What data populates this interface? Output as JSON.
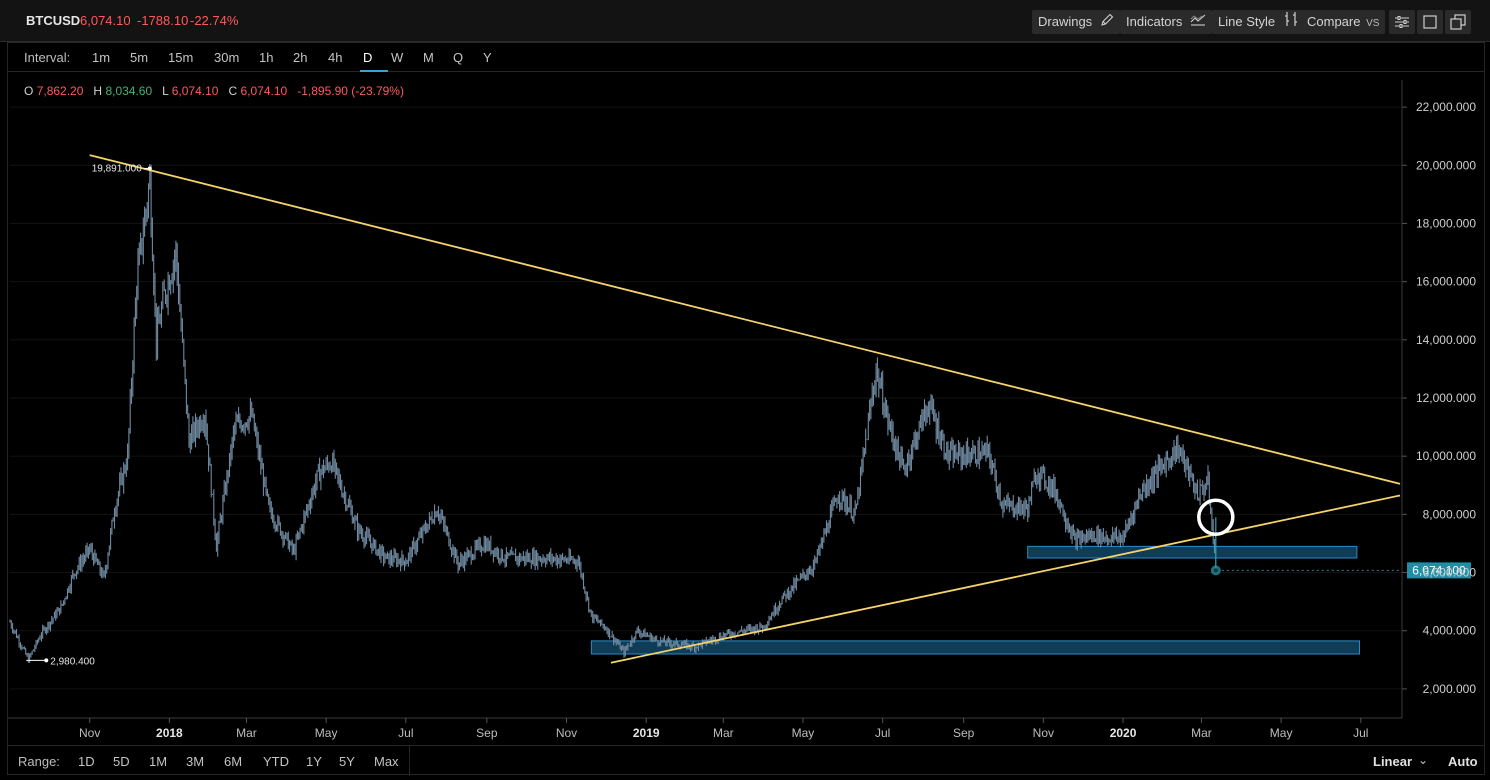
{
  "header": {
    "symbol": "BTCUSD",
    "price": "6,074.10",
    "change": "-1788.10",
    "change_pct": "-22.74%",
    "buttons": {
      "drawings": "Drawings",
      "indicators": "Indicators",
      "line_style": "Line Style",
      "compare": "Compare",
      "compare_suffix": "VS"
    },
    "icons": [
      "pencil-icon",
      "indicators-icon",
      "line-style-icon",
      "settings-sliders-icon",
      "fullscreen-icon",
      "popout-icon"
    ]
  },
  "interval": {
    "label": "Interval:",
    "options": [
      "1m",
      "5m",
      "15m",
      "30m",
      "1h",
      "2h",
      "4h",
      "D",
      "W",
      "M",
      "Q",
      "Y"
    ],
    "selected": "D"
  },
  "ohlc": {
    "o_label": "O",
    "o": "7,862.20",
    "h_label": "H",
    "h": "8,034.60",
    "l_label": "L",
    "l": "6,074.10",
    "c_label": "C",
    "c": "6,074.10",
    "change": "-1,895.90 (-23.79%)"
  },
  "range": {
    "label": "Range:",
    "options": [
      "1D",
      "5D",
      "1M",
      "3M",
      "6M",
      "YTD",
      "1Y",
      "5Y",
      "Max"
    ],
    "scale_mode": "Linear",
    "auto": "Auto"
  },
  "colors": {
    "background": "#000000",
    "price_series": "#6f8aa0",
    "trendline": "#f5d36b",
    "zone": "#1b6e9e",
    "zone_border": "#2f8ac2",
    "current_price_badge": "#1f8fa5",
    "negative": "#ff5a5a",
    "positive": "#4caf7a",
    "selected_underline": "#3aa3d6"
  },
  "chart_data": {
    "type": "ohlc",
    "y_ticks": [
      "2,000.000",
      "4,000.000",
      "6,000.000",
      "8,000.000",
      "10,000.000",
      "12,000.000",
      "14,000.000",
      "16,000.000",
      "18,000.000",
      "20,000.000",
      "22,000.000"
    ],
    "y_tick_values": [
      2000,
      4000,
      6000,
      8000,
      10000,
      12000,
      14000,
      16000,
      18000,
      20000,
      22000
    ],
    "ylim": [
      1000,
      23000
    ],
    "x_ticks": [
      "Nov",
      "2018",
      "Mar",
      "May",
      "Jul",
      "Sep",
      "Nov",
      "2019",
      "Mar",
      "May",
      "Jul",
      "Sep",
      "Nov",
      "2020",
      "Mar",
      "May",
      "Jul"
    ],
    "x_tick_dates": [
      "2017-11-01",
      "2018-01-01",
      "2018-03-01",
      "2018-05-01",
      "2018-07-01",
      "2018-09-01",
      "2018-11-01",
      "2019-01-01",
      "2019-03-01",
      "2019-05-01",
      "2019-07-01",
      "2019-09-01",
      "2019-11-01",
      "2020-01-01",
      "2020-03-01",
      "2020-05-01",
      "2020-07-01"
    ],
    "bold_x_ticks": [
      "2018",
      "2019",
      "2020"
    ],
    "xlim": [
      "2017-09-01",
      "2020-07-31"
    ],
    "series": [
      {
        "name": "BTCUSD",
        "points": [
          [
            "2017-09-01",
            4300
          ],
          [
            "2017-09-15",
            3000
          ],
          [
            "2017-09-25",
            3900
          ],
          [
            "2017-10-10",
            4800
          ],
          [
            "2017-10-20",
            6000
          ],
          [
            "2017-11-01",
            6800
          ],
          [
            "2017-11-12",
            5800
          ],
          [
            "2017-11-20",
            8200
          ],
          [
            "2017-11-30",
            10000
          ],
          [
            "2017-12-07",
            16000
          ],
          [
            "2017-12-17",
            19500
          ],
          [
            "2017-12-22",
            14000
          ],
          [
            "2017-12-28",
            15500
          ],
          [
            "2018-01-06",
            17000
          ],
          [
            "2018-01-16",
            10500
          ],
          [
            "2018-01-28",
            11500
          ],
          [
            "2018-02-06",
            6900
          ],
          [
            "2018-02-20",
            11000
          ],
          [
            "2018-03-05",
            11400
          ],
          [
            "2018-03-18",
            8200
          ],
          [
            "2018-04-06",
            6700
          ],
          [
            "2018-04-25",
            9400
          ],
          [
            "2018-05-05",
            9800
          ],
          [
            "2018-05-25",
            7500
          ],
          [
            "2018-06-15",
            6500
          ],
          [
            "2018-07-01",
            6400
          ],
          [
            "2018-07-25",
            8200
          ],
          [
            "2018-08-10",
            6300
          ],
          [
            "2018-08-30",
            7000
          ],
          [
            "2018-09-15",
            6500
          ],
          [
            "2018-10-15",
            6500
          ],
          [
            "2018-11-10",
            6400
          ],
          [
            "2018-11-20",
            4500
          ],
          [
            "2018-12-01",
            4100
          ],
          [
            "2018-12-15",
            3250
          ],
          [
            "2018-12-25",
            4000
          ],
          [
            "2019-01-10",
            3650
          ],
          [
            "2019-02-07",
            3450
          ],
          [
            "2019-03-01",
            3850
          ],
          [
            "2019-04-01",
            4150
          ],
          [
            "2019-04-15",
            5100
          ],
          [
            "2019-05-10",
            6300
          ],
          [
            "2019-05-28",
            8700
          ],
          [
            "2019-06-10",
            8000
          ],
          [
            "2019-06-26",
            13000
          ],
          [
            "2019-07-05",
            11200
          ],
          [
            "2019-07-17",
            9500
          ],
          [
            "2019-08-05",
            11800
          ],
          [
            "2019-08-20",
            10000
          ],
          [
            "2019-09-20",
            10100
          ],
          [
            "2019-10-01",
            8300
          ],
          [
            "2019-10-20",
            8200
          ],
          [
            "2019-10-27",
            9500
          ],
          [
            "2019-11-10",
            8800
          ],
          [
            "2019-11-25",
            7100
          ],
          [
            "2019-12-10",
            7300
          ],
          [
            "2019-12-20",
            7200
          ],
          [
            "2020-01-01",
            7200
          ],
          [
            "2020-01-15",
            8800
          ],
          [
            "2020-02-12",
            10300
          ],
          [
            "2020-02-27",
            8700
          ],
          [
            "2020-03-06",
            9100
          ],
          [
            "2020-03-12",
            6074
          ]
        ]
      }
    ],
    "annotations": {
      "high_label": "19,891.000",
      "low_label": "2,980.400",
      "current_price_label": "6,074.100",
      "current_price": 6074.1,
      "trendlines": [
        {
          "name": "descending-resistance",
          "from": [
            "2017-11-01",
            20350
          ],
          "to": [
            "2020-07-31",
            9050
          ]
        },
        {
          "name": "ascending-support",
          "from": [
            "2018-12-05",
            2900
          ],
          "to": [
            "2020-07-31",
            8650
          ]
        }
      ],
      "zones": [
        {
          "name": "support-zone-low",
          "from": "2018-11-20",
          "to": "2020-06-30",
          "y_low": 3200,
          "y_high": 3650
        },
        {
          "name": "support-zone-mid",
          "from": "2019-10-20",
          "to": "2020-06-28",
          "y_low": 6500,
          "y_high": 6900
        }
      ],
      "highlight_circle": {
        "date": "2020-03-12",
        "y": 7900
      },
      "drop_marker": {
        "date": "2020-03-12",
        "from": 7900,
        "to": 6074
      }
    }
  }
}
